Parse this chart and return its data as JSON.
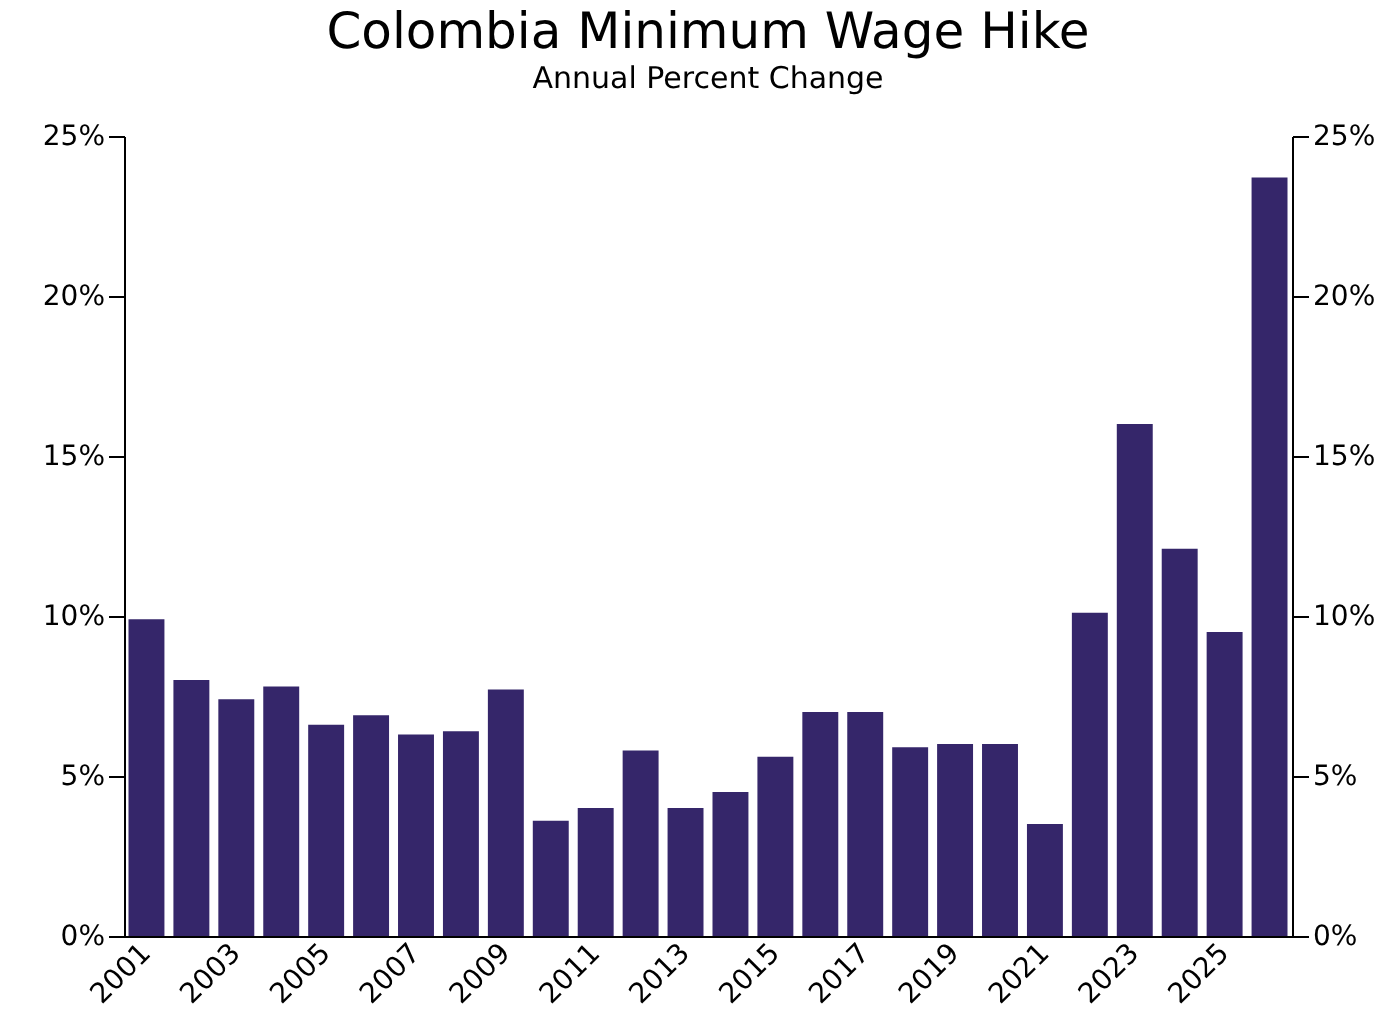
{
  "chart_data": {
    "type": "bar",
    "title": "Colombia Minimum Wage Hike",
    "subtitle": "Annual Percent Change",
    "categories": [
      "2001",
      null,
      "2003",
      null,
      "2005",
      null,
      "2007",
      null,
      "2009",
      null,
      "2011",
      null,
      "2013",
      null,
      "2015",
      null,
      "2017",
      null,
      "2019",
      null,
      "2021",
      null,
      "2023",
      null,
      "2025",
      null
    ],
    "values": [
      9.9,
      8.0,
      7.4,
      7.8,
      6.6,
      6.9,
      6.3,
      6.4,
      7.7,
      3.6,
      4.0,
      5.8,
      4.0,
      4.5,
      5.6,
      7.0,
      7.0,
      5.9,
      6.0,
      6.0,
      3.5,
      10.1,
      16.0,
      12.1,
      9.5,
      23.7
    ],
    "color": "#35266a",
    "ylim": [
      0,
      25
    ],
    "yticks": [
      {
        "value": 0,
        "label": "0%"
      },
      {
        "value": 5,
        "label": "5%"
      },
      {
        "value": 10,
        "label": "10%"
      },
      {
        "value": 15,
        "label": "15%"
      },
      {
        "value": 20,
        "label": "20%"
      },
      {
        "value": 25,
        "label": "25%"
      }
    ],
    "y2lim": [
      0,
      25
    ],
    "y2ticks": [
      {
        "value": 0,
        "label": "0%"
      },
      {
        "value": 5,
        "label": "5%"
      },
      {
        "value": 10,
        "label": "10%"
      },
      {
        "value": 15,
        "label": "15%"
      },
      {
        "value": 20,
        "label": "20%"
      },
      {
        "value": 25,
        "label": "25%"
      }
    ],
    "grid": false
  }
}
